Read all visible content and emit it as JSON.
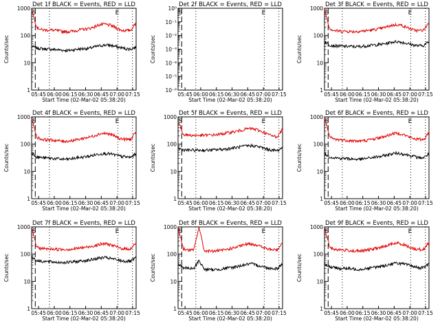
{
  "figure": {
    "background": "#ffffff",
    "event_color": "#000000",
    "lld_color": "#e00000",
    "ylabel": "Counts/sec",
    "xlabel": "Start Time (02-Mar-02 05:38:20)",
    "time_ticks": [
      "05:45",
      "06:00",
      "06:15",
      "06:30",
      "06:45",
      "07:00",
      "07:15"
    ],
    "marker_letters": [
      "S",
      "E"
    ]
  },
  "chart_data": [
    {
      "type": "line",
      "title": "Det 1f BLACK = Events, RED = LLD",
      "log_y": true,
      "yticks": [
        "1",
        "10",
        "100",
        "1000"
      ],
      "ylim": [
        1,
        1000
      ],
      "x_minutes": [
        0,
        5,
        10,
        15,
        20,
        25,
        30,
        35,
        40,
        45,
        50,
        55,
        60,
        65,
        70,
        75,
        80,
        85,
        90,
        95,
        100
      ],
      "series": [
        {
          "name": "Events",
          "values": [
            40,
            35,
            33,
            32,
            31,
            30,
            29,
            28,
            30,
            32,
            33,
            34,
            38,
            42,
            45,
            44,
            40,
            36,
            33,
            32,
            38
          ]
        },
        {
          "name": "LLD",
          "values": [
            900,
            200,
            160,
            160,
            158,
            150,
            140,
            140,
            145,
            160,
            170,
            180,
            210,
            250,
            260,
            240,
            200,
            160,
            150,
            160,
            300
          ]
        }
      ]
    },
    {
      "type": "line",
      "title": "Det 2f BLACK = Events, RED = LLD",
      "log_y": true,
      "yticks": [
        "10⁻⁶",
        "10⁻⁵",
        "10⁻⁴",
        "10⁻³",
        "10⁻²",
        "10⁻¹",
        "10⁰"
      ],
      "ylim": [
        1e-06,
        1
      ],
      "x_minutes": [],
      "series": []
    },
    {
      "type": "line",
      "title": "Det 3f BLACK = Events, RED = LLD",
      "log_y": true,
      "yticks": [
        "1",
        "10",
        "100",
        "1000"
      ],
      "ylim": [
        1,
        1000
      ],
      "x_minutes": [
        0,
        5,
        10,
        15,
        20,
        25,
        30,
        35,
        40,
        45,
        50,
        55,
        60,
        65,
        70,
        75,
        80,
        85,
        90,
        95,
        100
      ],
      "series": [
        {
          "name": "Events",
          "values": [
            60,
            45,
            42,
            41,
            40,
            40,
            39,
            40,
            42,
            44,
            46,
            48,
            52,
            58,
            60,
            56,
            50,
            45,
            42,
            44,
            60
          ]
        },
        {
          "name": "LLD",
          "values": [
            900,
            180,
            150,
            145,
            145,
            140,
            140,
            145,
            150,
            160,
            170,
            185,
            210,
            240,
            250,
            230,
            190,
            160,
            150,
            160,
            300
          ]
        }
      ]
    },
    {
      "type": "line",
      "title": "Det 4f BLACK = Events, RED = LLD",
      "log_y": true,
      "yticks": [
        "1",
        "10",
        "100",
        "1000"
      ],
      "ylim": [
        1,
        1000
      ],
      "x_minutes": [
        0,
        5,
        10,
        15,
        20,
        25,
        30,
        35,
        40,
        45,
        50,
        55,
        60,
        65,
        70,
        75,
        80,
        85,
        90,
        95,
        100
      ],
      "series": [
        {
          "name": "Events",
          "values": [
            50,
            34,
            32,
            31,
            30,
            29,
            28,
            28,
            30,
            32,
            34,
            36,
            40,
            44,
            46,
            44,
            40,
            36,
            34,
            33,
            45
          ]
        },
        {
          "name": "LLD",
          "values": [
            900,
            180,
            150,
            145,
            140,
            135,
            128,
            130,
            138,
            150,
            165,
            180,
            205,
            240,
            250,
            230,
            195,
            160,
            150,
            150,
            280
          ]
        }
      ]
    },
    {
      "type": "line",
      "title": "Det 5f BLACK = Events, RED = LLD",
      "log_y": true,
      "yticks": [
        "1",
        "10",
        "100",
        "1000"
      ],
      "ylim": [
        1,
        1000
      ],
      "x_minutes": [
        0,
        5,
        10,
        15,
        20,
        25,
        30,
        35,
        40,
        45,
        50,
        55,
        60,
        65,
        70,
        75,
        80,
        85,
        90,
        95,
        100
      ],
      "series": [
        {
          "name": "Events",
          "values": [
            70,
            62,
            60,
            60,
            60,
            60,
            60,
            62,
            64,
            66,
            70,
            74,
            80,
            86,
            88,
            84,
            75,
            66,
            60,
            58,
            75
          ]
        },
        {
          "name": "LLD",
          "values": [
            700,
            230,
            215,
            210,
            210,
            210,
            215,
            220,
            230,
            250,
            270,
            290,
            320,
            360,
            370,
            340,
            290,
            240,
            200,
            190,
            350
          ]
        }
      ]
    },
    {
      "type": "line",
      "title": "Det 6f BLACK = Events, RED = LLD",
      "log_y": true,
      "yticks": [
        "1",
        "10",
        "100",
        "1000"
      ],
      "ylim": [
        1,
        1000
      ],
      "x_minutes": [
        0,
        5,
        10,
        15,
        20,
        25,
        30,
        35,
        40,
        45,
        50,
        55,
        60,
        65,
        70,
        75,
        80,
        85,
        90,
        95,
        100
      ],
      "series": [
        {
          "name": "Events",
          "values": [
            45,
            34,
            32,
            30,
            30,
            29,
            28,
            28,
            30,
            32,
            34,
            36,
            40,
            45,
            47,
            44,
            40,
            36,
            32,
            32,
            45
          ]
        },
        {
          "name": "LLD",
          "values": [
            900,
            180,
            150,
            145,
            140,
            135,
            130,
            130,
            138,
            150,
            165,
            180,
            205,
            240,
            255,
            230,
            190,
            160,
            150,
            150,
            280
          ]
        }
      ]
    },
    {
      "type": "line",
      "title": "Det 7f BLACK = Events, RED = LLD",
      "log_y": true,
      "yticks": [
        "1",
        "10",
        "100",
        "1000"
      ],
      "ylim": [
        1,
        1000
      ],
      "x_minutes": [
        0,
        5,
        10,
        15,
        20,
        25,
        30,
        35,
        40,
        45,
        50,
        55,
        60,
        65,
        70,
        75,
        80,
        85,
        90,
        95,
        100
      ],
      "series": [
        {
          "name": "Events",
          "values": [
            80,
            58,
            55,
            53,
            52,
            50,
            50,
            50,
            52,
            55,
            58,
            60,
            66,
            72,
            75,
            70,
            64,
            58,
            55,
            55,
            75
          ]
        },
        {
          "name": "LLD",
          "values": [
            900,
            180,
            160,
            155,
            155,
            150,
            150,
            150,
            155,
            165,
            175,
            185,
            205,
            230,
            240,
            225,
            195,
            165,
            155,
            160,
            260
          ]
        }
      ]
    },
    {
      "type": "line",
      "title": "Det 8f BLACK = Events, RED = LLD",
      "log_y": true,
      "yticks": [
        "1",
        "10",
        "100",
        "1000"
      ],
      "ylim": [
        1,
        1000
      ],
      "x_minutes": [
        0,
        5,
        10,
        15,
        20,
        25,
        30,
        35,
        40,
        45,
        50,
        55,
        60,
        65,
        70,
        75,
        80,
        85,
        90,
        95,
        100
      ],
      "series": [
        {
          "name": "Events",
          "values": [
            45,
            32,
            30,
            29,
            60,
            28,
            27,
            27,
            28,
            30,
            32,
            34,
            38,
            42,
            44,
            40,
            36,
            32,
            30,
            30,
            45
          ]
        },
        {
          "name": "LLD",
          "values": [
            1000,
            160,
            140,
            140,
            1000,
            135,
            130,
            130,
            135,
            145,
            160,
            175,
            200,
            230,
            240,
            220,
            185,
            155,
            145,
            145,
            280
          ]
        }
      ]
    },
    {
      "type": "line",
      "title": "Det 9f BLACK = Events, RED = LLD",
      "log_y": true,
      "yticks": [
        "1",
        "10",
        "100",
        "1000"
      ],
      "ylim": [
        1,
        1000
      ],
      "x_minutes": [
        0,
        5,
        10,
        15,
        20,
        25,
        30,
        35,
        40,
        45,
        50,
        55,
        60,
        65,
        70,
        75,
        80,
        85,
        90,
        95,
        100
      ],
      "series": [
        {
          "name": "Events",
          "values": [
            45,
            34,
            32,
            30,
            30,
            29,
            28,
            28,
            30,
            32,
            34,
            36,
            40,
            45,
            47,
            44,
            40,
            36,
            32,
            32,
            45
          ]
        },
        {
          "name": "LLD",
          "values": [
            900,
            180,
            150,
            145,
            140,
            135,
            130,
            130,
            138,
            150,
            165,
            180,
            205,
            240,
            255,
            230,
            190,
            160,
            150,
            150,
            280
          ]
        }
      ]
    }
  ]
}
